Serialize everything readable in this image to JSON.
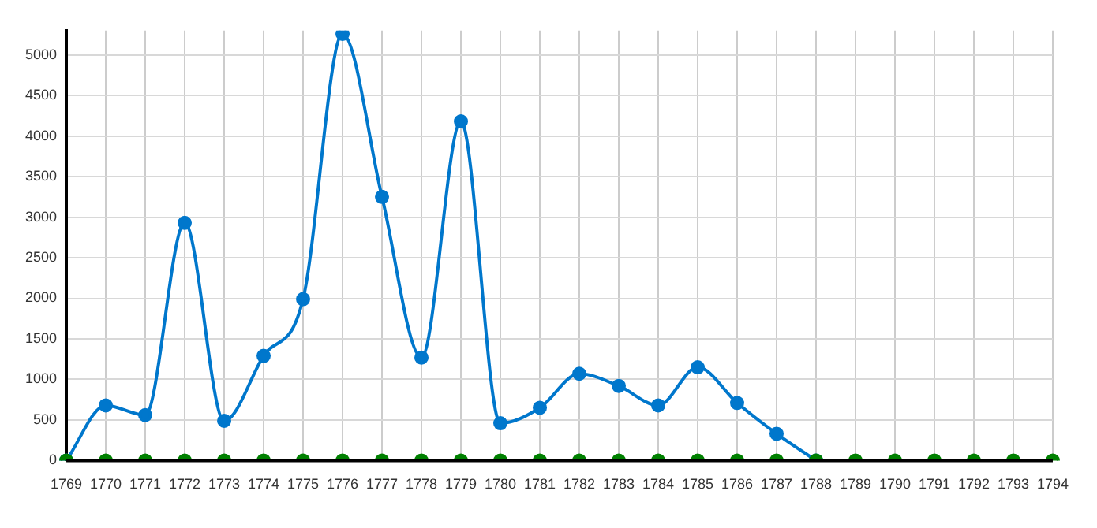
{
  "chart_data": {
    "type": "line",
    "categories": [
      "1769",
      "1770",
      "1771",
      "1772",
      "1773",
      "1774",
      "1775",
      "1776",
      "1777",
      "1778",
      "1779",
      "1780",
      "1781",
      "1782",
      "1783",
      "1784",
      "1785",
      "1786",
      "1787",
      "1788",
      "1789",
      "1790",
      "1791",
      "1792",
      "1793",
      "1794"
    ],
    "series": [
      {
        "color": "#0077cc",
        "values": [
          0,
          680,
          560,
          2930,
          490,
          1290,
          1990,
          5260,
          3250,
          1270,
          4180,
          460,
          650,
          1070,
          920,
          680,
          1150,
          710,
          330,
          0,
          null,
          null,
          null,
          null,
          null,
          null
        ]
      },
      {
        "color": "#008000",
        "values": [
          0,
          0,
          0,
          0,
          0,
          0,
          0,
          0,
          0,
          0,
          0,
          0,
          0,
          0,
          0,
          0,
          0,
          0,
          0,
          0,
          0,
          0,
          0,
          0,
          0,
          0
        ]
      }
    ],
    "ylim": [
      0,
      5300
    ],
    "yticks": [
      0,
      500,
      1000,
      1500,
      2000,
      2500,
      3000,
      3500,
      4000,
      4500,
      5000
    ],
    "grid": true,
    "legend": false,
    "marker": "circle",
    "line_style": "solid"
  }
}
